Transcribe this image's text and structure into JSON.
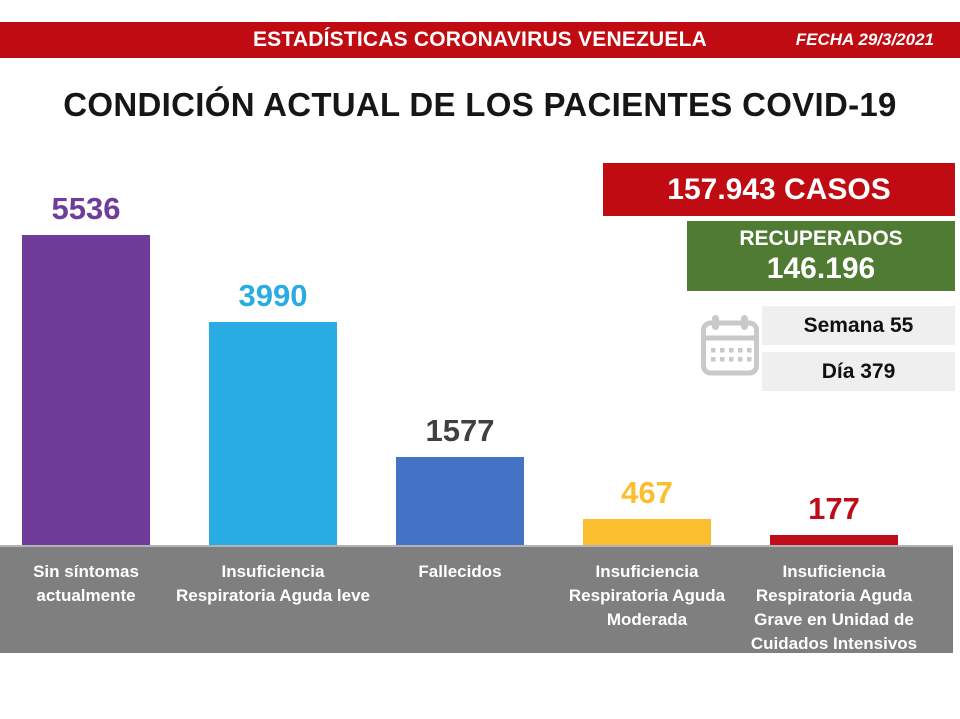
{
  "header": {
    "title": "ESTADÍSTICAS CORONAVIRUS VENEZUELA",
    "date_label": "FECHA 29/3/2021"
  },
  "page_title": "CONDICIÓN ACTUAL DE LOS PACIENTES COVID-19",
  "stats": {
    "cases_badge": "157.943 CASOS",
    "recovered_label": "RECUPERADOS",
    "recovered_value": "146.196",
    "week_label": "Semana 55",
    "day_label": "Día 379",
    "calendar_icon": "calendar-icon"
  },
  "chart_data": {
    "type": "bar",
    "title": "CONDICIÓN ACTUAL DE LOS PACIENTES COVID-19",
    "categories": [
      "Sin síntomas actualmente",
      "Insuficiencia Respiratoria Aguda leve",
      "Fallecidos",
      "Insuficiencia Respiratoria Aguda Moderada",
      "Insuficiencia Respiratoria Aguda Grave en Unidad de Cuidados Intensivos"
    ],
    "category_lines": [
      [
        "Sin síntomas",
        "actualmente"
      ],
      [
        "Insuficiencia",
        "Respiratoria Aguda leve"
      ],
      [
        "Fallecidos"
      ],
      [
        "Insuficiencia",
        "Respiratoria Aguda",
        "Moderada"
      ],
      [
        "Insuficiencia",
        "Respiratoria Aguda",
        "Grave en Unidad de",
        "Cuidados Intensivos"
      ]
    ],
    "values": [
      5536,
      3990,
      1577,
      467,
      177
    ],
    "bar_colors": [
      "#6F3D99",
      "#29ACE2",
      "#4472C4",
      "#FBBE2E",
      "#BF0C1B"
    ],
    "label_colors": [
      "#6F3D99",
      "#29ACE2",
      "#404040",
      "#FBBE2E",
      "#BF0C1B"
    ],
    "ylim": [
      0,
      5800
    ],
    "grid": false,
    "legend": false,
    "value_labels_shown": true
  },
  "colors": {
    "header_red": "#C00B13",
    "recovered_green": "#4F7B33",
    "panel_gray": "#7F7F7F",
    "strip_gray": "#EFEFEF",
    "calendar_gray": "#C9C9C9"
  }
}
